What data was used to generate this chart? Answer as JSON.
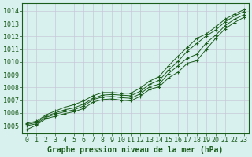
{
  "xlabel": "Graphe pression niveau de la mer (hPa)",
  "ylim": [
    1004.4,
    1014.6
  ],
  "xlim": [
    -0.5,
    23.5
  ],
  "yticks": [
    1005,
    1006,
    1007,
    1008,
    1009,
    1010,
    1011,
    1012,
    1013,
    1014
  ],
  "xticks": [
    0,
    1,
    2,
    3,
    4,
    5,
    6,
    7,
    8,
    9,
    10,
    11,
    12,
    13,
    14,
    15,
    16,
    17,
    18,
    19,
    20,
    21,
    22,
    23
  ],
  "bg_color": "#d8f0ee",
  "grid_color": "#c8c8d8",
  "line_color": "#1a5c1a",
  "lines": [
    [
      1004.7,
      1005.05,
      1005.55,
      1005.75,
      1005.95,
      1006.1,
      1006.35,
      1006.85,
      1007.05,
      1007.1,
      1007.0,
      1006.95,
      1007.3,
      1007.85,
      1008.05,
      1008.75,
      1009.2,
      1009.9,
      1010.1,
      1011.0,
      1011.85,
      1012.6,
      1013.1,
      1013.5
    ],
    [
      1005.0,
      1005.15,
      1005.65,
      1005.9,
      1006.1,
      1006.25,
      1006.55,
      1007.05,
      1007.25,
      1007.3,
      1007.2,
      1007.15,
      1007.5,
      1008.05,
      1008.25,
      1009.1,
      1009.7,
      1010.3,
      1010.6,
      1011.5,
      1012.1,
      1012.85,
      1013.35,
      1013.7
    ],
    [
      1005.1,
      1005.25,
      1005.75,
      1006.0,
      1006.25,
      1006.4,
      1006.7,
      1007.15,
      1007.4,
      1007.45,
      1007.4,
      1007.35,
      1007.7,
      1008.25,
      1008.55,
      1009.35,
      1010.05,
      1010.85,
      1011.45,
      1012.05,
      1012.5,
      1013.15,
      1013.6,
      1013.95
    ],
    [
      1005.2,
      1005.35,
      1005.85,
      1006.15,
      1006.45,
      1006.65,
      1006.95,
      1007.35,
      1007.6,
      1007.6,
      1007.55,
      1007.55,
      1007.95,
      1008.5,
      1008.85,
      1009.7,
      1010.45,
      1011.15,
      1011.85,
      1012.2,
      1012.75,
      1013.35,
      1013.75,
      1014.1
    ]
  ],
  "font_color": "#1a5c1a",
  "font_size_label": 7.0,
  "font_size_tick": 6.0
}
